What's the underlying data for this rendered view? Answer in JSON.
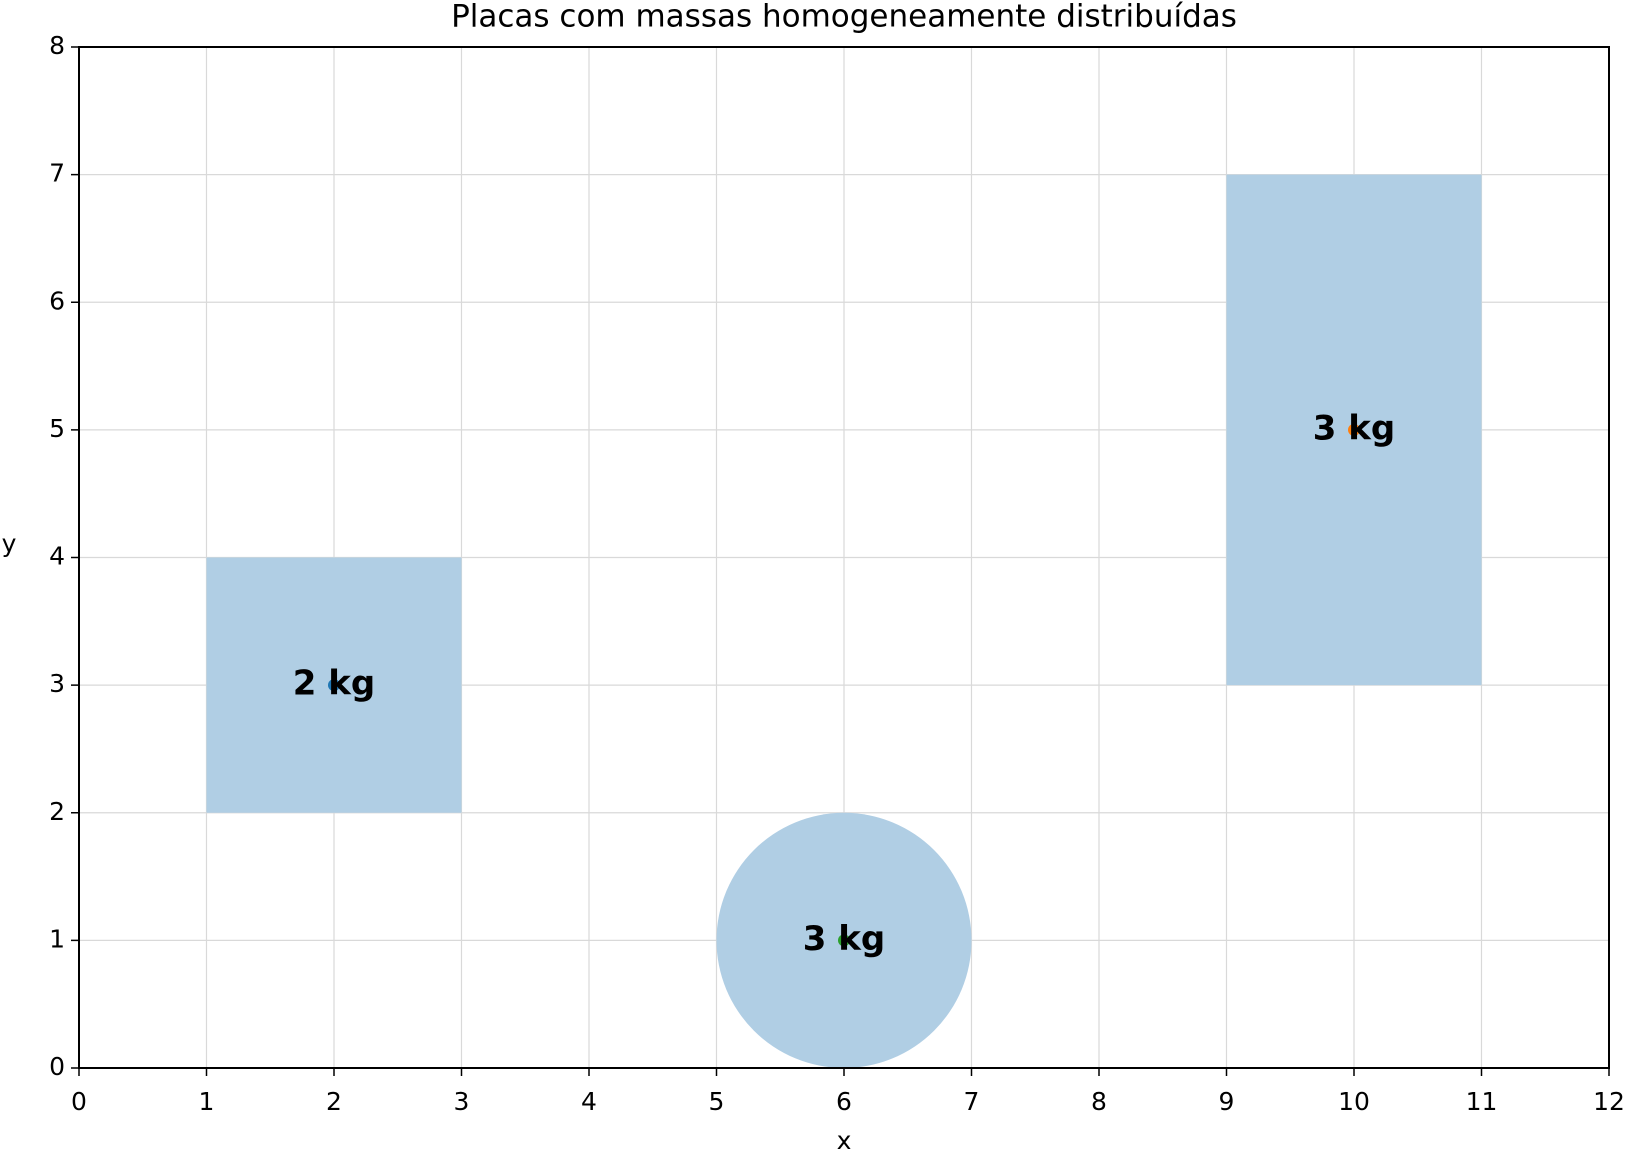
{
  "chart_data": {
    "type": "scatter",
    "title": "Placas com massas homogeneamente distribuídas",
    "xlabel": "x",
    "ylabel": "y",
    "xlim": [
      0,
      12
    ],
    "ylim": [
      0,
      8
    ],
    "xticks": [
      0,
      1,
      2,
      3,
      4,
      5,
      6,
      7,
      8,
      9,
      10,
      11,
      12
    ],
    "yticks": [
      0,
      1,
      2,
      3,
      4,
      5,
      6,
      7,
      8
    ],
    "grid": true,
    "plate_color": "#b0cee4",
    "plates": [
      {
        "shape": "rect",
        "x": [
          1,
          3
        ],
        "y": [
          2,
          4
        ]
      },
      {
        "shape": "rect",
        "x": [
          9,
          11
        ],
        "y": [
          3,
          7
        ]
      },
      {
        "shape": "circle",
        "center": [
          6,
          1
        ],
        "radius": 1
      }
    ],
    "x": [
      2,
      10,
      6
    ],
    "values": [
      3,
      5,
      1
    ],
    "colors": [
      "#1f77b4",
      "#ff7f0e",
      "#2ca02c"
    ],
    "labels": [
      "2 kg",
      "3 kg",
      "3 kg"
    ]
  }
}
